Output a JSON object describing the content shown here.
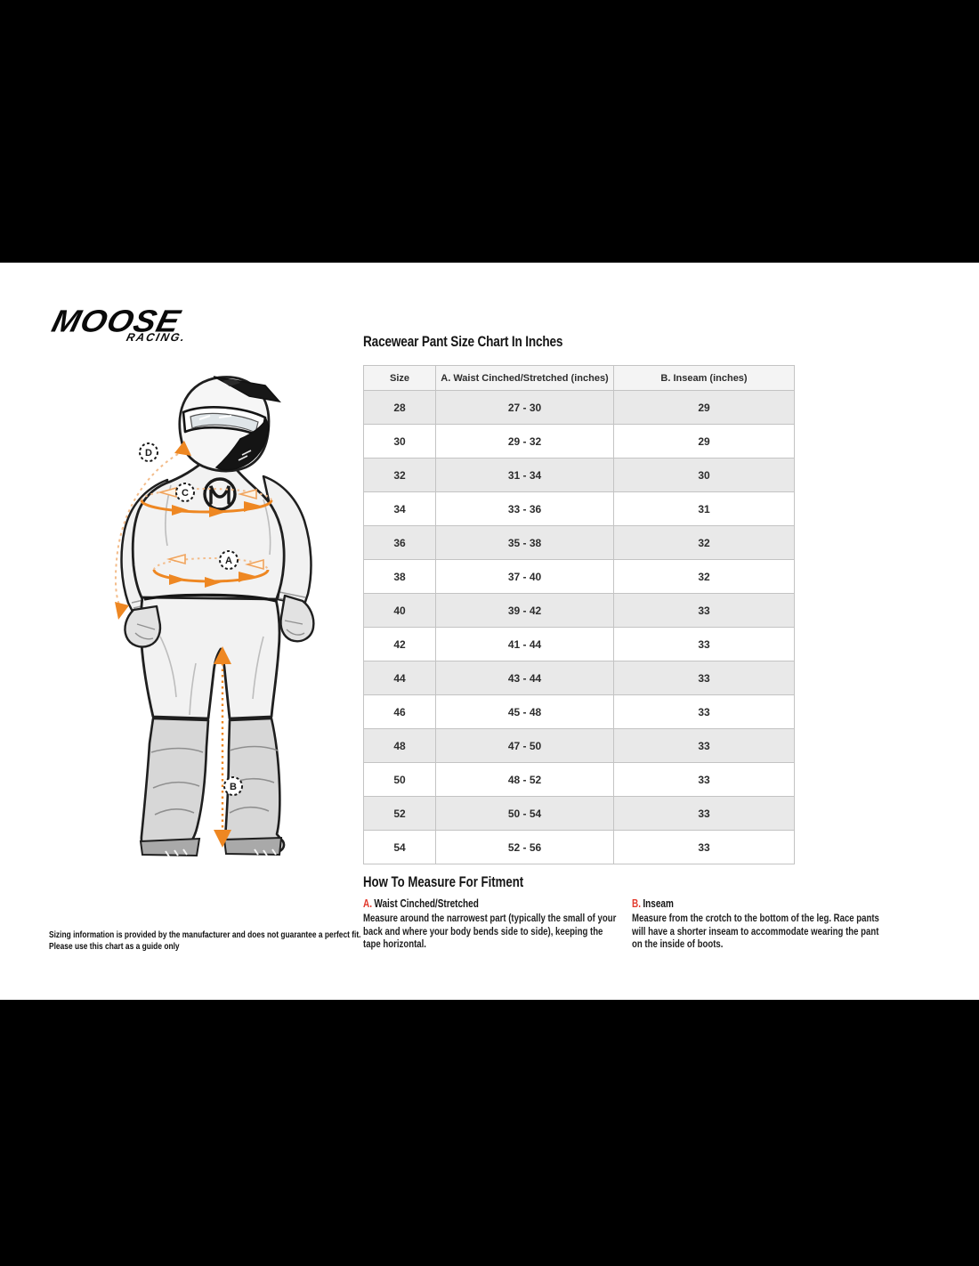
{
  "brand": {
    "name": "MOOSE",
    "sub": "RACING."
  },
  "chart": {
    "title": "Racewear Pant Size Chart In Inches"
  },
  "size_table": {
    "headers": [
      "Size",
      "A. Waist Cinched/Stretched (inches)",
      "B. Inseam (inches)"
    ],
    "rows": [
      [
        "28",
        "27 - 30",
        "29"
      ],
      [
        "30",
        "29 - 32",
        "29"
      ],
      [
        "32",
        "31 - 34",
        "30"
      ],
      [
        "34",
        "33 - 36",
        "31"
      ],
      [
        "36",
        "35 - 38",
        "32"
      ],
      [
        "38",
        "37 - 40",
        "32"
      ],
      [
        "40",
        "39 - 42",
        "33"
      ],
      [
        "42",
        "41 - 44",
        "33"
      ],
      [
        "44",
        "43 - 44",
        "33"
      ],
      [
        "46",
        "45 - 48",
        "33"
      ],
      [
        "48",
        "47 - 50",
        "33"
      ],
      [
        "50",
        "48 - 52",
        "33"
      ],
      [
        "52",
        "50 - 54",
        "33"
      ],
      [
        "54",
        "52 - 56",
        "33"
      ]
    ]
  },
  "how_to_measure": {
    "heading": "How To Measure For Fitment",
    "items": [
      {
        "key": "A.",
        "label": "Waist Cinched/Stretched",
        "text": "Measure around the narrowest part (typically the small of your back and where your body bends side to side), keeping the tape horizontal."
      },
      {
        "key": "B.",
        "label": "Inseam",
        "text": "Measure from the crotch to the bottom of the leg. Race pants will have a shorter inseam to accommodate wearing the pant on the inside of boots."
      }
    ]
  },
  "disclaimer": {
    "line1": "Sizing information is provided by the manufacturer and does not guarantee a perfect fit.",
    "line2": "Please use this chart as a guide only"
  },
  "figure": {
    "labels": {
      "a": "A",
      "b": "B",
      "c": "C",
      "d": "D"
    }
  },
  "colors": {
    "accent_orange": "#EE8722",
    "accent_orange_light": "#F3BC8A",
    "accent_red": "#E23B2E",
    "table_header_bg": "#F4F4F4",
    "table_alt_row": "#E9E9E9",
    "table_border": "#C3C3C3",
    "bar_black": "#000000"
  }
}
